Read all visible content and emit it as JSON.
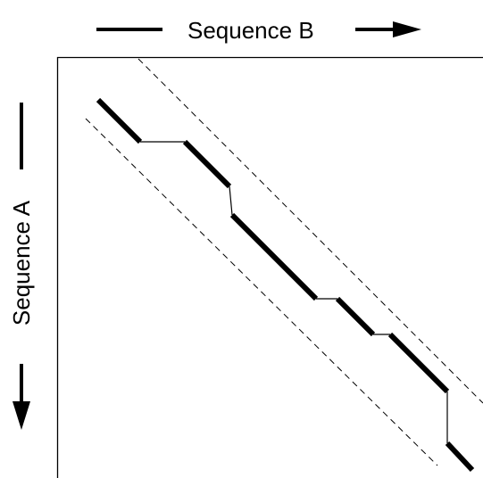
{
  "labels": {
    "top": "Sequence B",
    "left": "Sequence A"
  },
  "colors": {
    "ink": "#000000",
    "background": "#ffffff"
  },
  "legend_icons": {
    "top_arrow": "right-arrow-icon",
    "left_arrow": "down-arrow-icon"
  }
}
